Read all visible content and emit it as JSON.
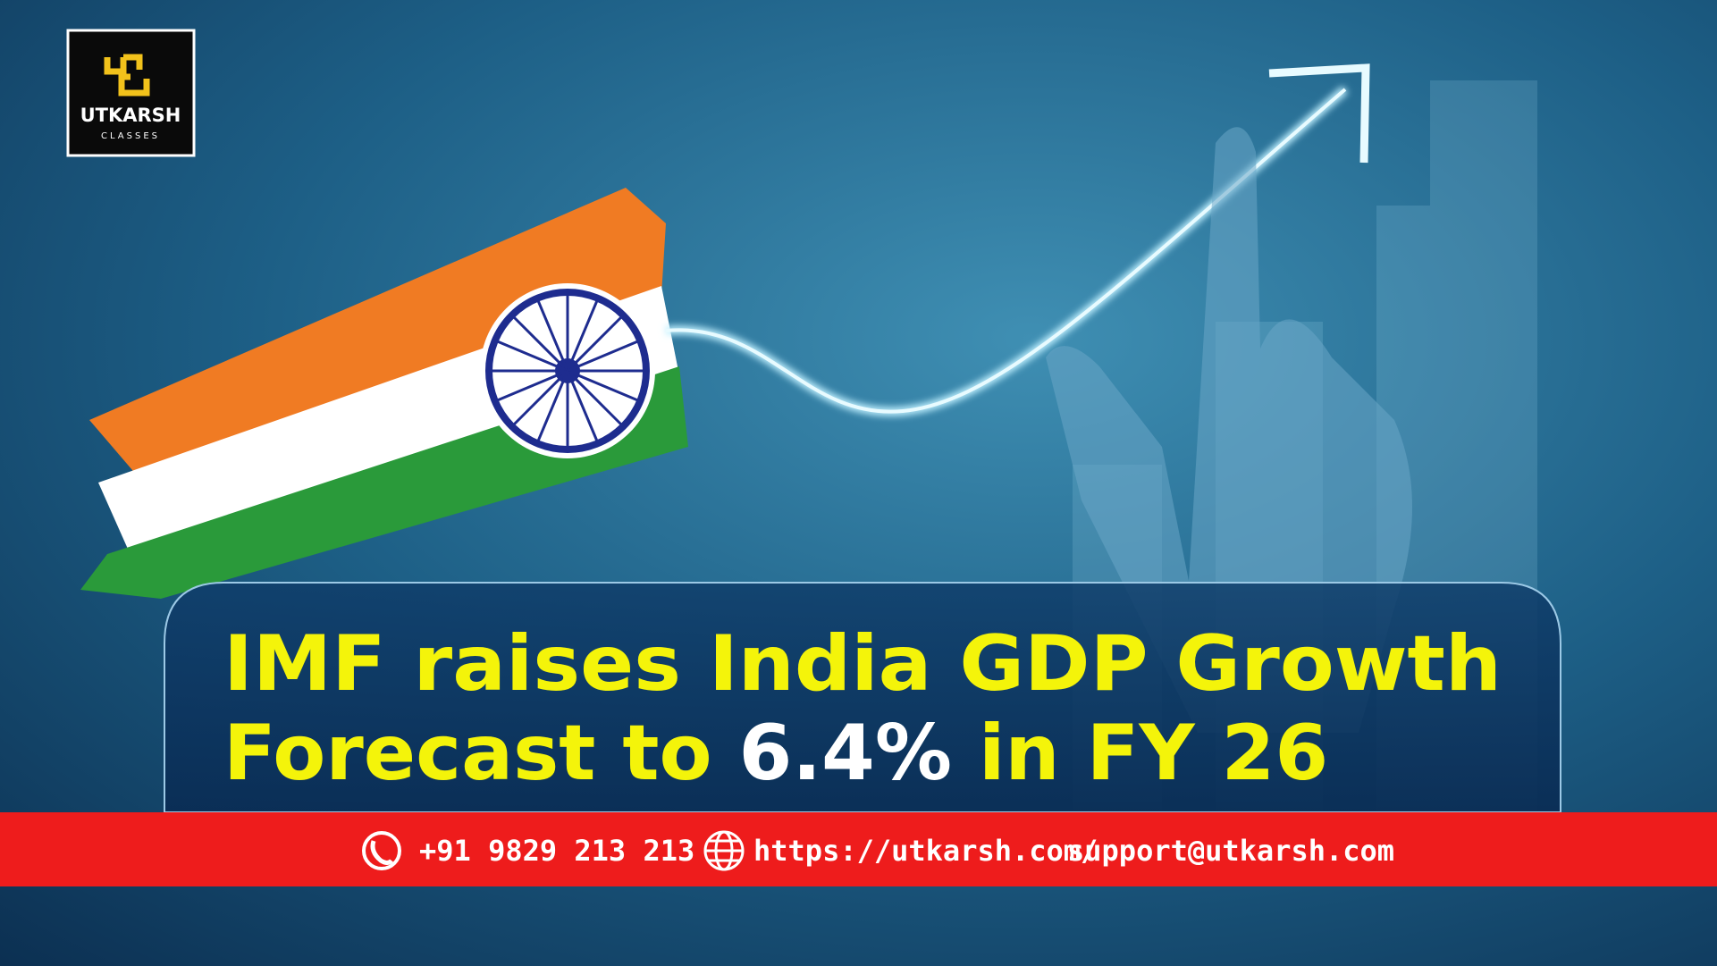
{
  "logo": {
    "name": "UTKARSH",
    "tagline": "CLASSES"
  },
  "headline": {
    "line1": "IMF raises India GDP Growth",
    "line2_start": "Forecast to",
    "highlight": "6.4%",
    "line2_end": "in FY 26"
  },
  "contact": {
    "phone": "+91 9829 213 213",
    "website": "https://utkarsh.com/",
    "email": "support@utkarsh.com"
  }
}
